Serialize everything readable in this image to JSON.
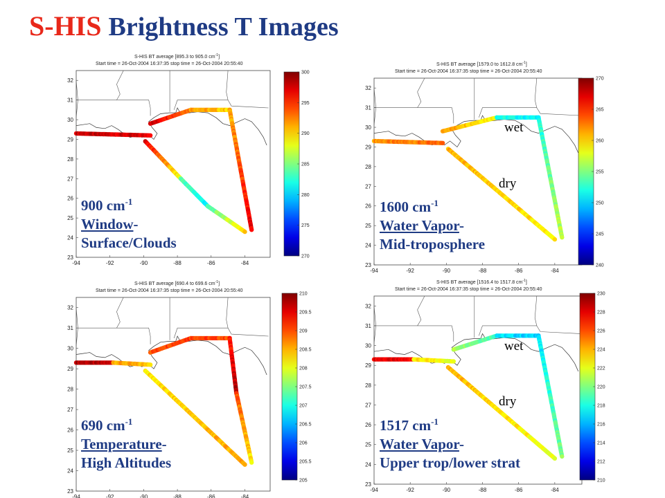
{
  "title": {
    "acronym": "S-HIS",
    "rest": "Brightness T Images"
  },
  "chart_data": [
    {
      "type": "scatter",
      "header_line1": "S-HIS BT average [895.3 to 905.0 cm",
      "header_line2": "Start time = 26-Oct-2004 16:37:35  stop time = 26-Oct-2004 20:55:40",
      "x_ticks": [
        "-94",
        "-92",
        "-90",
        "-88",
        "-86",
        "-84"
      ],
      "y_ticks": [
        "32",
        "31",
        "30",
        "29",
        "28",
        "27",
        "26",
        "25",
        "24",
        "23"
      ],
      "xlim": [
        -94,
        -82.5
      ],
      "ylim": [
        23,
        32.5
      ],
      "colorbar": {
        "min": 270,
        "max": 300,
        "ticks": [
          "300",
          "295",
          "290",
          "285",
          "280",
          "275",
          "270"
        ]
      },
      "caption": {
        "wavenumber": "900 cm",
        "exponent": "-1",
        "term": "Window",
        "term_suffix": "-",
        "line3": "Surface/Clouds"
      },
      "annotations": [],
      "flight_segments": [
        {
          "from": [
            -94,
            29.3
          ],
          "to": [
            -89.6,
            29.2
          ],
          "c0": 298,
          "c1": 297
        },
        {
          "from": [
            -89.6,
            29.8
          ],
          "to": [
            -87.2,
            30.5
          ],
          "c0": 298,
          "c1": 293
        },
        {
          "from": [
            -87.2,
            30.5
          ],
          "to": [
            -84.9,
            30.5
          ],
          "c0": 292,
          "c1": 290
        },
        {
          "from": [
            -84.9,
            30.5
          ],
          "to": [
            -83.6,
            24.4
          ],
          "c0": 291,
          "c1": 297
        },
        {
          "from": [
            -89.9,
            28.9
          ],
          "to": [
            -87.8,
            27.0
          ],
          "c0": 297,
          "c1": 288
        },
        {
          "from": [
            -87.8,
            27.0
          ],
          "to": [
            -86.2,
            25.6
          ],
          "c0": 284,
          "c1": 281
        },
        {
          "from": [
            -86.2,
            25.6
          ],
          "to": [
            -84.0,
            24.3
          ],
          "c0": 283,
          "c1": 290
        }
      ]
    },
    {
      "type": "scatter",
      "header_line1": "S-HIS BT average [1579.0 to 1612.8 cm",
      "header_line2": "Start time = 26-Oct-2004 16:37:35  stop time = 26-Oct-2004 20:55:40",
      "x_ticks": [
        "-94",
        "-92",
        "-90",
        "-88",
        "-86",
        "-84"
      ],
      "y_ticks": [
        "32",
        "31",
        "30",
        "29",
        "28",
        "27",
        "26",
        "25",
        "24",
        "23"
      ],
      "xlim": [
        -94,
        -82.5
      ],
      "ylim": [
        23,
        32.5
      ],
      "colorbar": {
        "min": 240,
        "max": 270,
        "ticks": [
          "270",
          "265",
          "260",
          "255",
          "250",
          "245",
          "240"
        ]
      },
      "caption": {
        "wavenumber": "1600 cm",
        "exponent": "-1",
        "term": "Water Vapor",
        "term_suffix": "-",
        "line3": "Mid-troposphere"
      },
      "annotations": [
        "wet",
        "dry"
      ],
      "flight_segments": [
        {
          "from": [
            -94,
            29.3
          ],
          "to": [
            -90.2,
            29.2
          ],
          "c0": 262,
          "c1": 263
        },
        {
          "from": [
            -90.2,
            29.8
          ],
          "to": [
            -87.2,
            30.5
          ],
          "c0": 262,
          "c1": 259
        },
        {
          "from": [
            -87.2,
            30.5
          ],
          "to": [
            -84.9,
            30.5
          ],
          "c0": 252,
          "c1": 251
        },
        {
          "from": [
            -84.9,
            30.5
          ],
          "to": [
            -83.6,
            24.4
          ],
          "c0": 252,
          "c1": 257
        },
        {
          "from": [
            -89.9,
            28.9
          ],
          "to": [
            -84.0,
            24.3
          ],
          "c0": 261,
          "c1": 259
        }
      ]
    },
    {
      "type": "scatter",
      "header_line1": "S-HIS BT average [690.4 to 699.6 cm",
      "header_line2": "Start time = 26-Oct-2004 16:37:35  stop time = 26-Oct-2004 20:55:40",
      "x_ticks": [
        "-94",
        "-92",
        "-90",
        "-88",
        "-86",
        "-84"
      ],
      "y_ticks": [
        "32",
        "31",
        "30",
        "29",
        "28",
        "27",
        "26",
        "25",
        "24",
        "23"
      ],
      "xlim": [
        -94,
        -82.5
      ],
      "ylim": [
        23,
        32.5
      ],
      "colorbar": {
        "min": 205,
        "max": 210,
        "ticks": [
          "210",
          "209.5",
          "209",
          "208.5",
          "208",
          "207.5",
          "207",
          "206.5",
          "206",
          "205.5",
          "205"
        ]
      },
      "caption": {
        "wavenumber": "690 cm",
        "exponent": "-1",
        "term": "Temperature",
        "term_suffix": "-",
        "line3": "High Altitudes"
      },
      "annotations": [],
      "flight_segments": [
        {
          "from": [
            -94,
            29.3
          ],
          "to": [
            -91.8,
            29.3
          ],
          "c0": 209.8,
          "c1": 209.6
        },
        {
          "from": [
            -91.8,
            29.3
          ],
          "to": [
            -89.6,
            29.2
          ],
          "c0": 208.6,
          "c1": 208.4
        },
        {
          "from": [
            -89.6,
            29.8
          ],
          "to": [
            -87.2,
            30.5
          ],
          "c0": 209.0,
          "c1": 209.2
        },
        {
          "from": [
            -87.2,
            30.5
          ],
          "to": [
            -84.9,
            30.5
          ],
          "c0": 209.1,
          "c1": 209.0
        },
        {
          "from": [
            -84.9,
            30.5
          ],
          "to": [
            -84.5,
            27.8
          ],
          "c0": 209.2,
          "c1": 209.8
        },
        {
          "from": [
            -84.5,
            27.8
          ],
          "to": [
            -83.6,
            24.4
          ],
          "c0": 209.0,
          "c1": 208.2
        },
        {
          "from": [
            -89.9,
            28.9
          ],
          "to": [
            -84.0,
            24.3
          ],
          "c0": 208.2,
          "c1": 208.6
        }
      ]
    },
    {
      "type": "scatter",
      "header_line1": "S-HIS BT average [1516.4 to 1517.8 cm",
      "header_line2": "Start time = 26-Oct-2004 16:37:35  stop time = 26-Oct-2004 20:55:40",
      "x_ticks": [
        "-94",
        "-92",
        "-90",
        "-88",
        "-86",
        "-84"
      ],
      "y_ticks": [
        "32",
        "31",
        "30",
        "29",
        "28",
        "27",
        "26",
        "25",
        "24",
        "23"
      ],
      "xlim": [
        -94,
        -82.5
      ],
      "ylim": [
        23,
        32.5
      ],
      "colorbar": {
        "min": 210,
        "max": 230,
        "ticks": [
          "230",
          "228",
          "226",
          "224",
          "222",
          "220",
          "218",
          "216",
          "214",
          "212",
          "210"
        ]
      },
      "caption": {
        "wavenumber": "1517 cm",
        "exponent": "-1",
        "term": "Water Vapor",
        "term_suffix": "-",
        "line3": "Upper trop/lower strat"
      },
      "annotations": [
        "wet",
        "dry"
      ],
      "flight_segments": [
        {
          "from": [
            -94,
            29.3
          ],
          "to": [
            -91.8,
            29.3
          ],
          "c0": 228,
          "c1": 227.5
        },
        {
          "from": [
            -91.8,
            29.3
          ],
          "to": [
            -89.6,
            29.2
          ],
          "c0": 223,
          "c1": 222
        },
        {
          "from": [
            -89.6,
            29.8
          ],
          "to": [
            -87.2,
            30.5
          ],
          "c0": 221,
          "c1": 219
        },
        {
          "from": [
            -87.2,
            30.5
          ],
          "to": [
            -84.9,
            30.5
          ],
          "c0": 217,
          "c1": 216.5
        },
        {
          "from": [
            -84.9,
            30.5
          ],
          "to": [
            -83.6,
            24.4
          ],
          "c0": 217,
          "c1": 220
        },
        {
          "from": [
            -89.9,
            28.9
          ],
          "to": [
            -84.0,
            24.3
          ],
          "c0": 224,
          "c1": 222
        }
      ]
    }
  ]
}
